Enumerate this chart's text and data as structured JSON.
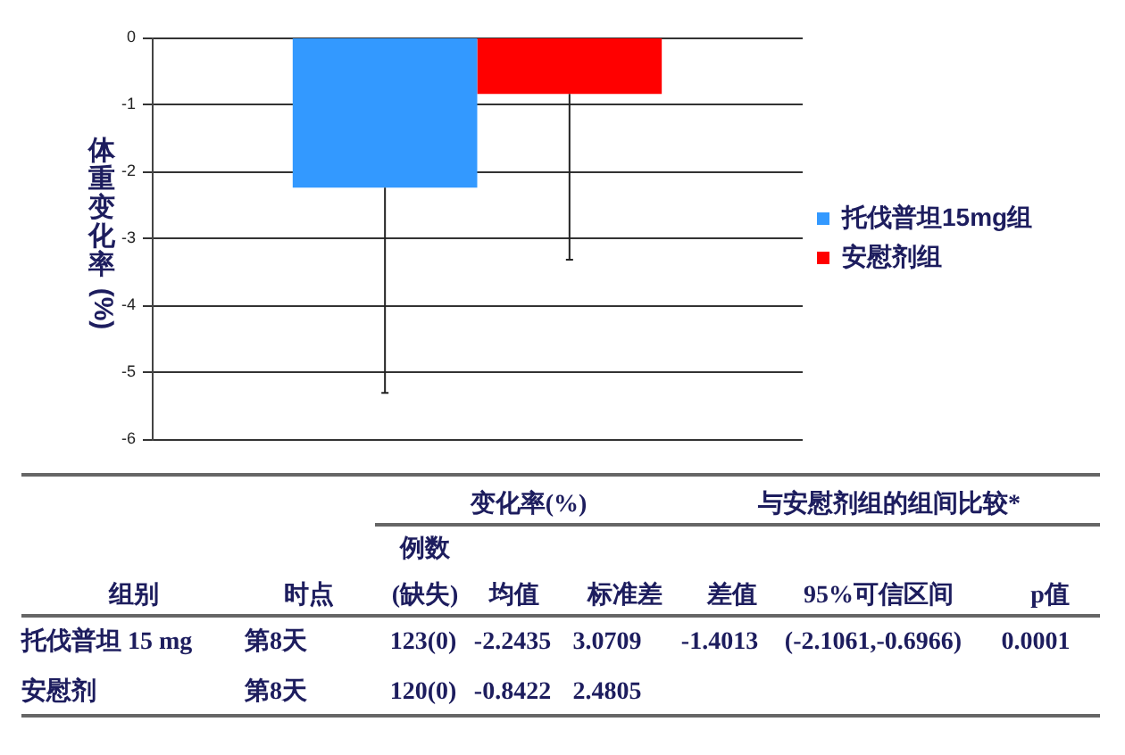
{
  "chart_data": {
    "type": "bar",
    "ylabel": "体重变化率(%)",
    "categories": [
      null
    ],
    "series": [
      {
        "name": "托伐普坦15mg组",
        "color": "#3399ff",
        "values": [
          -2.2435
        ],
        "errors": [
          [
            -5.31,
            -2.2435
          ]
        ]
      },
      {
        "name": "安慰剂组",
        "color": "#ff0000",
        "values": [
          -0.8422
        ],
        "errors": [
          [
            -3.32,
            -0.8422
          ]
        ]
      }
    ],
    "ylim": [
      -6,
      0
    ],
    "yticks": [
      -6,
      -5,
      -4,
      -3,
      -2,
      -1,
      0
    ],
    "grid": "y",
    "legend": "right",
    "annotations": [
      "变化率(%)",
      "与安慰剂组的组间比较*",
      "例数",
      "(缺失)",
      "组别",
      "时点",
      "均值",
      "标准差",
      "差值",
      "95%可信区间",
      "p值",
      "托伐普坦 15 mg",
      "第8天",
      "123(0)",
      "-2.2435",
      "3.0709",
      "-1.4013",
      "(-2.1061,-0.6966)",
      "0.0001",
      "安慰剂",
      "第8天",
      "120(0)",
      "-0.8422",
      "2.4805"
    ]
  }
}
